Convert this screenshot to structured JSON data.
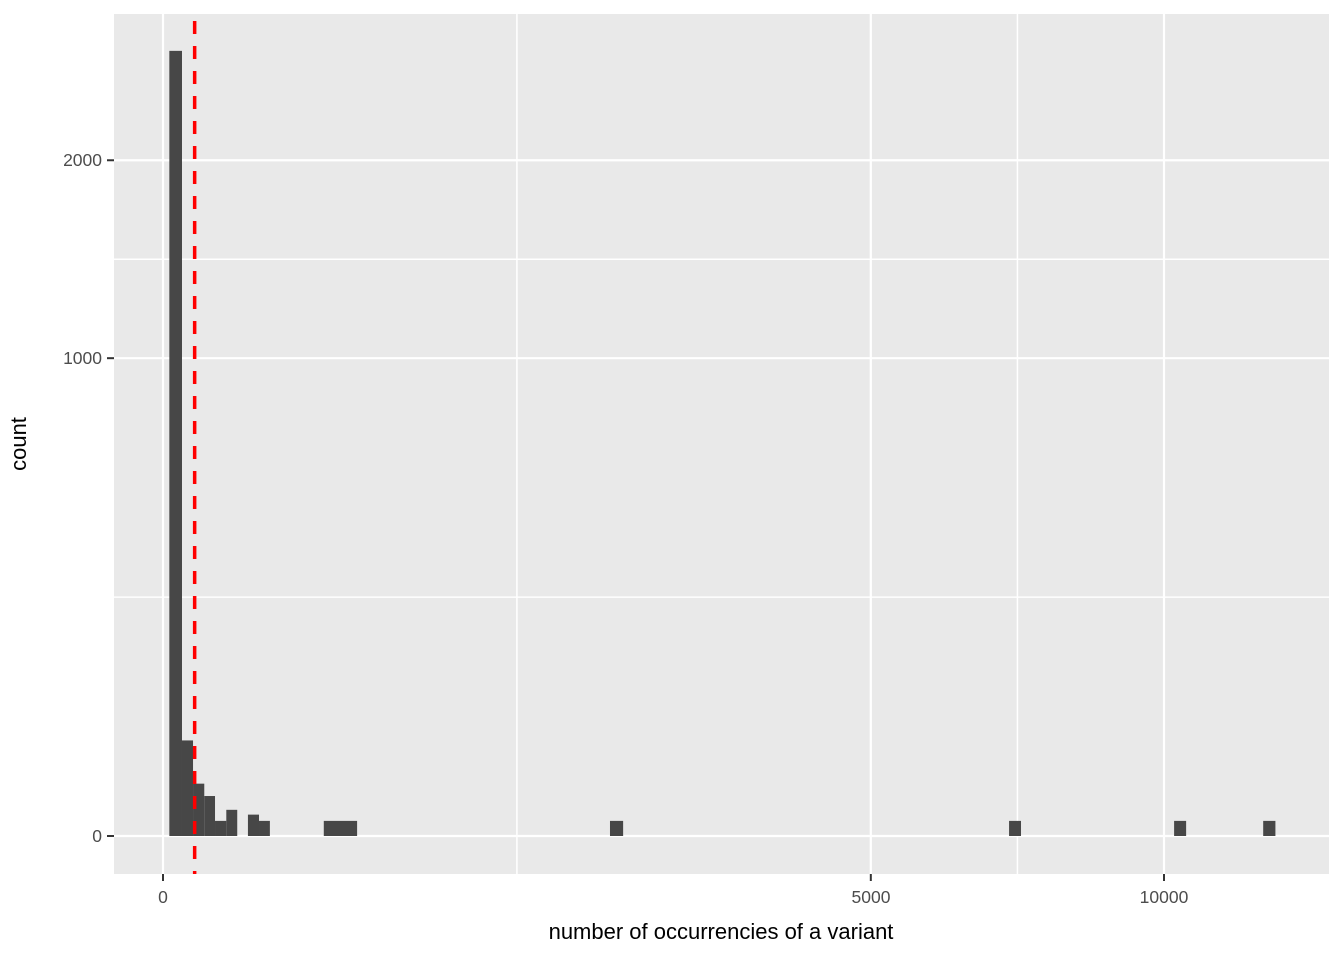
{
  "chart_data": {
    "type": "bar",
    "subtype": "histogram",
    "title": "",
    "xlabel": "number of occurrencies of a variant",
    "ylabel": "count",
    "x_axis": {
      "transform": "sqrt",
      "tick_labels": [
        "0",
        "5000",
        "10000"
      ],
      "tick_values": [
        0,
        5000,
        10000
      ],
      "minor_gridline_values": [
        1250,
        7286
      ],
      "range": [
        0,
        13500
      ]
    },
    "y_axis": {
      "transform": "sqrt",
      "tick_labels": [
        "0",
        "1000",
        "2000"
      ],
      "tick_values": [
        0,
        1000,
        2000
      ],
      "minor_gridline_values": [
        250,
        1457
      ],
      "range": [
        0,
        2950
      ]
    },
    "bars": [
      {
        "from": 0.4,
        "to": 3.6,
        "count": 2700
      },
      {
        "from": 3.6,
        "to": 9,
        "count": 40
      },
      {
        "from": 9,
        "to": 17,
        "count": 12
      },
      {
        "from": 17,
        "to": 27,
        "count": 7
      },
      {
        "from": 27,
        "to": 40,
        "count": 1
      },
      {
        "from": 40,
        "to": 55,
        "count": 3
      },
      {
        "from": 72,
        "to": 92,
        "count": 2
      },
      {
        "from": 92,
        "to": 114,
        "count": 1
      },
      {
        "from": 258,
        "to": 376,
        "count": 1
      },
      {
        "from": 1994,
        "to": 2113,
        "count": 1
      },
      {
        "from": 7144,
        "to": 7347,
        "count": 1
      },
      {
        "from": 10203,
        "to": 10447,
        "count": 1
      },
      {
        "from": 12080,
        "to": 12350,
        "count": 1
      }
    ],
    "reference_line": {
      "orientation": "vertical",
      "x": 10,
      "color": "#FF0000",
      "linetype": "dashed"
    },
    "colors": {
      "bar_fill": "#474747",
      "panel_background": "#E9E9E9",
      "gridline": "#FFFFFF",
      "tick_mark": "#333333",
      "tick_text": "#4D4D4D",
      "axis_title_text": "#000000",
      "outer_background": "#FFFFFF"
    },
    "legend": "none",
    "grid": "on"
  }
}
